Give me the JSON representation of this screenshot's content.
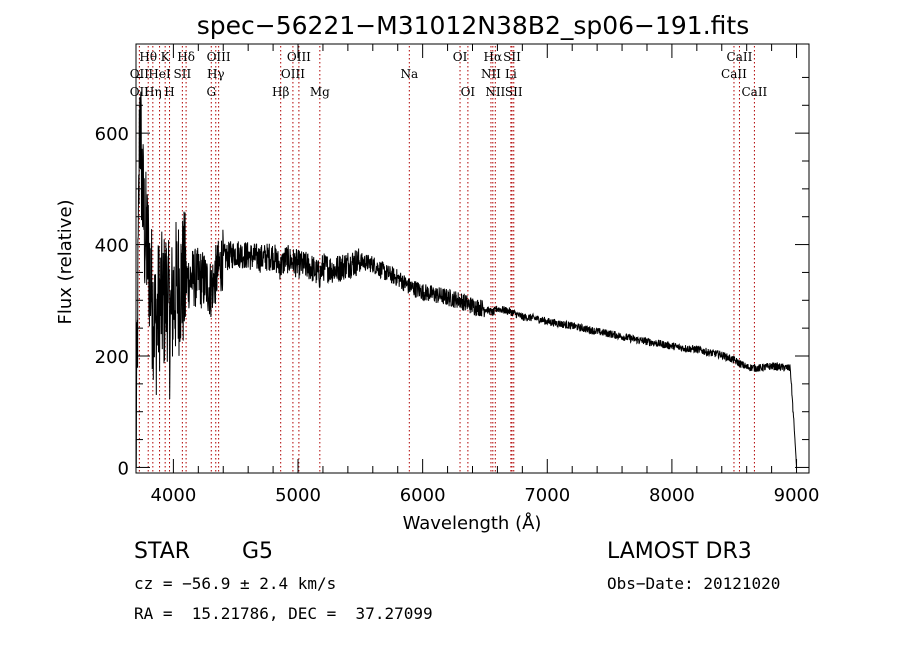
{
  "chart_data": {
    "type": "line",
    "title": "spec−56221−M31012N38B2_sp06−191.fits",
    "xlabel": "Wavelength (Å)",
    "ylabel": "Flux (relative)",
    "xlim": [
      3700,
      9100
    ],
    "ylim": [
      -10,
      760
    ],
    "x_ticks": [
      4000,
      5000,
      6000,
      7000,
      8000,
      9000
    ],
    "y_ticks": [
      0,
      200,
      400,
      600
    ],
    "spectrum_anchors": [
      [
        3700,
        0
      ],
      [
        3715,
        300
      ],
      [
        3730,
        650
      ],
      [
        3750,
        500
      ],
      [
        3770,
        420
      ],
      [
        3800,
        380
      ],
      [
        3830,
        300
      ],
      [
        3860,
        250
      ],
      [
        3890,
        300
      ],
      [
        3920,
        290
      ],
      [
        3950,
        320
      ],
      [
        3970,
        250
      ],
      [
        4000,
        310
      ],
      [
        4050,
        330
      ],
      [
        4100,
        335
      ],
      [
        4150,
        340
      ],
      [
        4200,
        340
      ],
      [
        4250,
        335
      ],
      [
        4300,
        320
      ],
      [
        4340,
        345
      ],
      [
        4400,
        375
      ],
      [
        4500,
        385
      ],
      [
        4600,
        380
      ],
      [
        4700,
        375
      ],
      [
        4800,
        380
      ],
      [
        4861,
        360
      ],
      [
        4900,
        375
      ],
      [
        5000,
        365
      ],
      [
        5100,
        360
      ],
      [
        5175,
        345
      ],
      [
        5200,
        360
      ],
      [
        5300,
        355
      ],
      [
        5400,
        365
      ],
      [
        5500,
        370
      ],
      [
        5600,
        365
      ],
      [
        5700,
        350
      ],
      [
        5800,
        340
      ],
      [
        5890,
        325
      ],
      [
        5950,
        320
      ],
      [
        6000,
        315
      ],
      [
        6100,
        310
      ],
      [
        6200,
        305
      ],
      [
        6300,
        300
      ],
      [
        6400,
        290
      ],
      [
        6500,
        285
      ],
      [
        6563,
        278
      ],
      [
        6600,
        285
      ],
      [
        6700,
        280
      ],
      [
        6800,
        270
      ],
      [
        6900,
        268
      ],
      [
        7000,
        262
      ],
      [
        7100,
        258
      ],
      [
        7200,
        254
      ],
      [
        7300,
        249
      ],
      [
        7400,
        244
      ],
      [
        7500,
        240
      ],
      [
        7600,
        235
      ],
      [
        7700,
        230
      ],
      [
        7800,
        226
      ],
      [
        7900,
        222
      ],
      [
        8000,
        218
      ],
      [
        8100,
        214
      ],
      [
        8200,
        212
      ],
      [
        8300,
        206
      ],
      [
        8400,
        202
      ],
      [
        8500,
        192
      ],
      [
        8600,
        180
      ],
      [
        8700,
        178
      ],
      [
        8800,
        182
      ],
      [
        8950,
        178
      ],
      [
        8990,
        40
      ],
      [
        9000,
        0
      ]
    ],
    "spectral_lines": [
      {
        "name": "OII",
        "wavelength": 3727,
        "row": 2
      },
      {
        "name": "OII",
        "wavelength": 3727,
        "row": 3
      },
      {
        "name": "Hθ",
        "wavelength": 3798,
        "row": 1
      },
      {
        "name": "Hη",
        "wavelength": 3835,
        "row": 3
      },
      {
        "name": "HeI",
        "wavelength": 3889,
        "row": 2
      },
      {
        "name": "K",
        "wavelength": 3934,
        "row": 1
      },
      {
        "name": "H",
        "wavelength": 3969,
        "row": 3
      },
      {
        "name": "SII",
        "wavelength": 4072,
        "row": 2
      },
      {
        "name": "Hδ",
        "wavelength": 4102,
        "row": 1
      },
      {
        "name": "OIII",
        "wavelength": 4363,
        "row": 1
      },
      {
        "name": "Hγ",
        "wavelength": 4340,
        "row": 2
      },
      {
        "name": "G",
        "wavelength": 4304,
        "row": 3
      },
      {
        "name": "Hβ",
        "wavelength": 4861,
        "row": 3
      },
      {
        "name": "OIII",
        "wavelength": 5007,
        "row": 1
      },
      {
        "name": "OIII",
        "wavelength": 4959,
        "row": 2
      },
      {
        "name": "Mg",
        "wavelength": 5175,
        "row": 3
      },
      {
        "name": "Na",
        "wavelength": 5893,
        "row": 2
      },
      {
        "name": "OI",
        "wavelength": 6300,
        "row": 1
      },
      {
        "name": "OI",
        "wavelength": 6363,
        "row": 3
      },
      {
        "name": "Hα",
        "wavelength": 6563,
        "row": 1
      },
      {
        "name": "NII",
        "wavelength": 6548,
        "row": 2
      },
      {
        "name": "NII",
        "wavelength": 6583,
        "row": 3
      },
      {
        "name": "SII",
        "wavelength": 6717,
        "row": 1
      },
      {
        "name": "Li",
        "wavelength": 6708,
        "row": 2
      },
      {
        "name": "SII",
        "wavelength": 6731,
        "row": 3
      },
      {
        "name": "CaII",
        "wavelength": 8542,
        "row": 1
      },
      {
        "name": "CaII",
        "wavelength": 8498,
        "row": 2
      },
      {
        "name": "CaII",
        "wavelength": 8662,
        "row": 3
      }
    ]
  },
  "info": {
    "object_class": "STAR",
    "subclass": "G5",
    "survey": "LAMOST DR3",
    "redshift": "cz = −56.9 ± 2.4 km/s",
    "obs_date": "Obs−Date: 20121020",
    "coords": "RA =  15.21786, DEC =  37.27099"
  }
}
